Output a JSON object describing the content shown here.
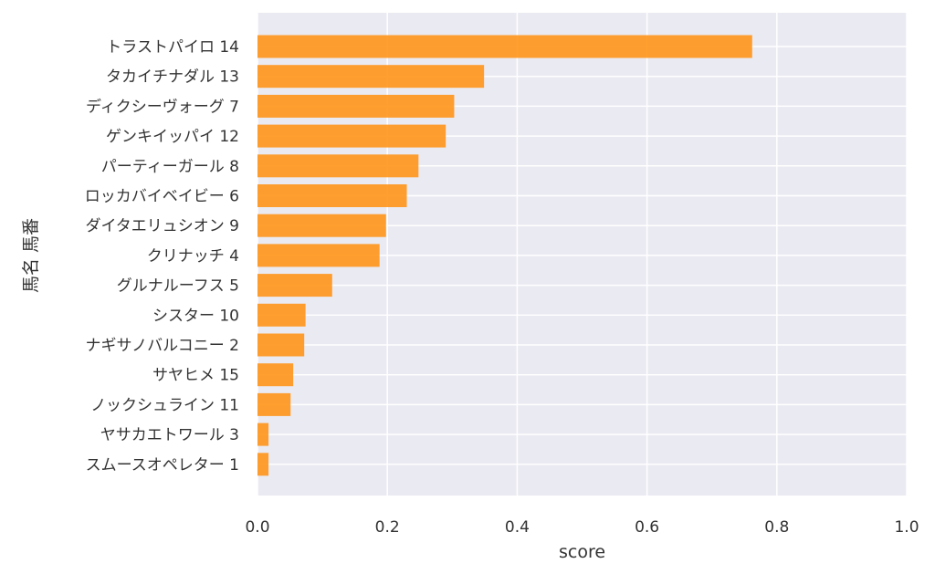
{
  "chart_data": {
    "type": "bar",
    "orientation": "horizontal",
    "xlabel": "score",
    "ylabel": "馬名 馬番",
    "xlim": [
      0.0,
      1.0
    ],
    "xticks": [
      "0.0",
      "0.2",
      "0.4",
      "0.6",
      "0.8",
      "1.0"
    ],
    "grid": true,
    "bar_color": "#ff9519",
    "background_color": "#eaeaf2",
    "categories": [
      "トラストパイロ 14",
      "タカイチナダル 13",
      "ディクシーヴォーグ 7",
      "ゲンキイッパイ 12",
      "パーティーガール 8",
      "ロッカバイベイビー 6",
      "ダイタエリュシオン 9",
      "クリナッチ 4",
      "グルナルーフス 5",
      "シスター 10",
      "ナギサノバルコニー 2",
      "サヤヒメ 15",
      "ノックシュライン 11",
      "ヤサカエトワール 3",
      "スムースオペレター 1"
    ],
    "values": [
      0.762,
      0.349,
      0.303,
      0.29,
      0.248,
      0.23,
      0.198,
      0.188,
      0.115,
      0.074,
      0.072,
      0.055,
      0.051,
      0.017,
      0.017
    ]
  }
}
